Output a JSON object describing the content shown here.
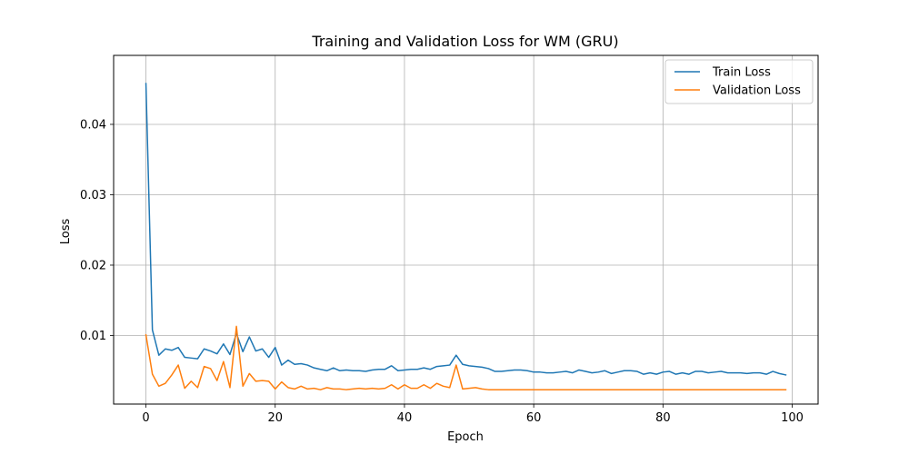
{
  "chart_data": {
    "type": "line",
    "title": "Training and Validation Loss for WM (GRU)",
    "xlabel": "Epoch",
    "ylabel": "Loss",
    "xlim": [
      -5,
      104
    ],
    "ylim": [
      0.00026,
      0.0498
    ],
    "xticks": [
      0,
      20,
      40,
      60,
      80,
      100
    ],
    "xtick_labels": [
      "0",
      "20",
      "40",
      "60",
      "80",
      "100"
    ],
    "yticks": [
      0.01,
      0.02,
      0.03,
      0.04
    ],
    "ytick_labels": [
      "0.01",
      "0.02",
      "0.03",
      "0.04"
    ],
    "grid": true,
    "legend_position": "upper right",
    "series": [
      {
        "name": "Train Loss",
        "color": "#1f77b4",
        "values": [
          0.0458,
          0.0108,
          0.0072,
          0.0081,
          0.0079,
          0.0083,
          0.0069,
          0.0068,
          0.0067,
          0.0081,
          0.0078,
          0.0074,
          0.0088,
          0.0073,
          0.0103,
          0.0077,
          0.0098,
          0.0078,
          0.0081,
          0.0069,
          0.0083,
          0.0058,
          0.0065,
          0.0059,
          0.006,
          0.0058,
          0.0054,
          0.0052,
          0.005,
          0.0054,
          0.005,
          0.0051,
          0.005,
          0.005,
          0.0049,
          0.0051,
          0.0052,
          0.0052,
          0.0057,
          0.005,
          0.0051,
          0.0052,
          0.0052,
          0.0054,
          0.0052,
          0.0056,
          0.0057,
          0.0058,
          0.0072,
          0.0059,
          0.0057,
          0.0056,
          0.0055,
          0.0053,
          0.0049,
          0.0049,
          0.005,
          0.0051,
          0.0051,
          0.005,
          0.0048,
          0.0048,
          0.0047,
          0.0047,
          0.0048,
          0.0049,
          0.0047,
          0.0051,
          0.0049,
          0.0047,
          0.0048,
          0.005,
          0.0046,
          0.0048,
          0.005,
          0.005,
          0.0049,
          0.0045,
          0.0047,
          0.0045,
          0.0048,
          0.0049,
          0.0045,
          0.0047,
          0.0045,
          0.0049,
          0.0049,
          0.0047,
          0.0048,
          0.0049,
          0.0047,
          0.0047,
          0.0047,
          0.0046,
          0.0047,
          0.0047,
          0.0045,
          0.0049,
          0.0046,
          0.0044
        ]
      },
      {
        "name": "Validation Loss",
        "color": "#ff7f0e",
        "values": [
          0.0101,
          0.0045,
          0.0028,
          0.0032,
          0.0044,
          0.0058,
          0.0025,
          0.0035,
          0.0026,
          0.0056,
          0.0053,
          0.0036,
          0.0063,
          0.0026,
          0.0113,
          0.0028,
          0.0046,
          0.0035,
          0.0036,
          0.0035,
          0.0024,
          0.0034,
          0.0026,
          0.0024,
          0.0028,
          0.0024,
          0.0025,
          0.0023,
          0.0026,
          0.0024,
          0.0024,
          0.0023,
          0.0024,
          0.0025,
          0.0024,
          0.0025,
          0.0024,
          0.0025,
          0.003,
          0.0024,
          0.003,
          0.0025,
          0.0025,
          0.003,
          0.0025,
          0.0032,
          0.0028,
          0.0026,
          0.0058,
          0.0024,
          0.0025,
          0.0026,
          0.0024,
          0.0023,
          0.0023,
          0.0023,
          0.0023,
          0.0023,
          0.0023,
          0.0023,
          0.0023,
          0.0023,
          0.0023,
          0.0023,
          0.0023,
          0.0023,
          0.0023,
          0.0023,
          0.0023,
          0.0023,
          0.0023,
          0.0023,
          0.0023,
          0.0023,
          0.0023,
          0.0023,
          0.0023,
          0.0023,
          0.0023,
          0.0023,
          0.0023,
          0.0023,
          0.0023,
          0.0023,
          0.0023,
          0.0023,
          0.0023,
          0.0023,
          0.0023,
          0.0023,
          0.0023,
          0.0023,
          0.0023,
          0.0023,
          0.0023,
          0.0023,
          0.0023,
          0.0023,
          0.0023,
          0.0023
        ]
      }
    ]
  }
}
